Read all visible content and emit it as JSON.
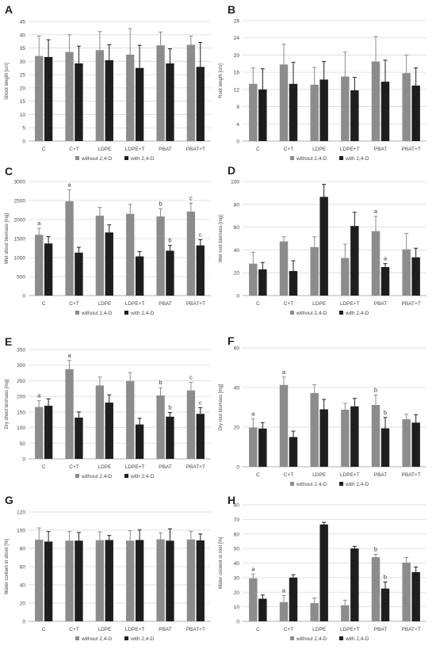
{
  "colors": {
    "without": "#8c8c8c",
    "with": "#1e1e1e",
    "grid": "#d9d9d9",
    "axis": "#b3b3b3",
    "text": "#444444"
  },
  "chart_data": [
    {
      "panel": "A",
      "type": "bar",
      "ylabel": "Shoot length [cm]",
      "ylim": [
        0,
        45
      ],
      "yticks": [
        0,
        5,
        10,
        15,
        20,
        25,
        30,
        35,
        40,
        45
      ],
      "categories": [
        "C",
        "C+T",
        "LDPE",
        "LDPE+T",
        "PBAT",
        "PBAT+T"
      ],
      "series": [
        {
          "name": "without 2,4-D",
          "values": [
            32,
            33.5,
            34.2,
            32.5,
            36,
            36.2
          ],
          "errors": [
            7.5,
            6.5,
            7,
            9.8,
            5,
            3.3
          ],
          "letters": [
            "",
            "",
            "",
            "",
            "",
            ""
          ]
        },
        {
          "name": "with 2,4-D",
          "values": [
            31.6,
            29.2,
            30.4,
            27.5,
            29.2,
            27.9
          ],
          "errors": [
            6.5,
            6.5,
            5.8,
            8.5,
            5.5,
            9.2
          ],
          "letters": [
            "",
            "",
            "",
            "",
            "",
            ""
          ]
        }
      ],
      "legend": "bottom",
      "grid": true
    },
    {
      "panel": "B",
      "type": "bar",
      "ylabel": "Root length [cm]",
      "ylim": [
        0,
        28
      ],
      "yticks": [
        0,
        4,
        8,
        12,
        16,
        20,
        24,
        28
      ],
      "categories": [
        "C",
        "C+T",
        "LDPE",
        "LDPE+T",
        "PBAT",
        "PBAT+T"
      ],
      "series": [
        {
          "name": "without 2,4-D",
          "values": [
            13.3,
            17.8,
            13.1,
            15,
            18.5,
            15.8
          ],
          "errors": [
            3.7,
            4.7,
            4,
            5.7,
            5.8,
            4.2
          ],
          "letters": [
            "",
            "",
            "",
            "",
            "",
            ""
          ]
        },
        {
          "name": "with 2,4-D",
          "values": [
            12,
            13.3,
            14.3,
            11.8,
            13.8,
            12.9
          ],
          "errors": [
            4.8,
            5,
            4.2,
            3,
            5,
            4.1
          ],
          "letters": [
            "",
            "",
            "",
            "",
            "",
            ""
          ]
        }
      ],
      "legend": "bottom",
      "grid": true
    },
    {
      "panel": "C",
      "type": "bar",
      "ylabel": "Wet shoot biomass [mg]",
      "ylim": [
        0,
        3000
      ],
      "yticks": [
        0,
        500,
        1000,
        1500,
        2000,
        2500,
        3000
      ],
      "categories": [
        "C",
        "C+T",
        "LDPE",
        "LDPE+T",
        "PBAT",
        "PBAT+T"
      ],
      "series": [
        {
          "name": "without 2,4-D",
          "values": [
            1600,
            2480,
            2100,
            2150,
            2080,
            2210
          ],
          "errors": [
            170,
            300,
            220,
            250,
            200,
            220
          ],
          "letters": [
            "a",
            "a",
            "",
            "",
            "b",
            "c"
          ]
        },
        {
          "name": "with 2,4-D",
          "values": [
            1370,
            1130,
            1660,
            1030,
            1180,
            1320
          ],
          "errors": [
            180,
            140,
            200,
            130,
            140,
            150
          ],
          "letters": [
            "",
            "",
            "",
            "",
            "b",
            "c"
          ]
        }
      ],
      "legend": "bottom",
      "grid": true
    },
    {
      "panel": "D",
      "type": "bar",
      "ylabel": "Wet root biomass [mg]",
      "ylim": [
        0,
        100
      ],
      "yticks": [
        0,
        20,
        40,
        60,
        80,
        100
      ],
      "categories": [
        "C",
        "C+T",
        "LDPE",
        "LDPE+T",
        "PBAT",
        "PBAT+T"
      ],
      "series": [
        {
          "name": "without 2,4-D",
          "values": [
            28,
            47.5,
            42.5,
            33,
            56.5,
            40.5
          ],
          "errors": [
            10,
            4,
            9,
            12,
            13,
            14
          ],
          "letters": [
            "",
            "",
            "",
            "",
            "a",
            ""
          ]
        },
        {
          "name": "with 2,4-D",
          "values": [
            23,
            21.5,
            86.5,
            61,
            25,
            33.5
          ],
          "errors": [
            6,
            9,
            11,
            12,
            3,
            8
          ],
          "letters": [
            "",
            "",
            "",
            "",
            "a",
            ""
          ]
        }
      ],
      "legend": "bottom",
      "grid": true
    },
    {
      "panel": "E",
      "type": "bar",
      "ylabel": "Dry shoot biomass [mg]",
      "ylim": [
        0,
        350
      ],
      "yticks": [
        0,
        50,
        100,
        150,
        200,
        250,
        300,
        350
      ],
      "categories": [
        "C",
        "C+T",
        "LDPE",
        "LDPE+T",
        "PBAT",
        "PBAT+T"
      ],
      "series": [
        {
          "name": "without 2,4-D",
          "values": [
            166,
            287,
            235,
            249,
            203,
            219
          ],
          "errors": [
            20,
            28,
            27,
            27,
            25,
            26
          ],
          "letters": [
            "a",
            "a",
            "",
            "",
            "b",
            "c"
          ]
        },
        {
          "name": "with 2,4-D",
          "values": [
            170,
            132,
            180,
            110,
            135,
            144
          ],
          "errors": [
            22,
            18,
            25,
            20,
            13,
            20
          ],
          "letters": [
            "",
            "",
            "",
            "",
            "b",
            "c"
          ]
        }
      ],
      "legend": "bottom",
      "grid": true
    },
    {
      "panel": "F",
      "type": "bar",
      "ylabel": "Dry root biomass [mg]",
      "ylim": [
        0,
        60
      ],
      "yticks": [
        0,
        20,
        40,
        60
      ],
      "categories": [
        "C",
        "C+T",
        "LDPE",
        "LDPE+T",
        "PBAT",
        "PBAT+T"
      ],
      "series": [
        {
          "name": "without 2,4-D",
          "values": [
            19.8,
            41.3,
            37.2,
            28.8,
            31.2,
            24
          ],
          "errors": [
            4.5,
            4,
            4.2,
            3.2,
            5,
            2.5
          ],
          "letters": [
            "a",
            "a",
            "",
            "",
            "b",
            ""
          ]
        },
        {
          "name": "with 2,4-D",
          "values": [
            19.3,
            15,
            29,
            30.5,
            19.4,
            22.3
          ],
          "errors": [
            3,
            3,
            5,
            4,
            5.5,
            4
          ],
          "letters": [
            "",
            "",
            "",
            "",
            "b",
            ""
          ]
        }
      ],
      "legend": "bottom",
      "grid": true
    },
    {
      "panel": "G",
      "type": "bar",
      "ylabel": "Water content in shoot [%]",
      "ylim": [
        0,
        120
      ],
      "yticks": [
        0,
        20,
        40,
        60,
        80,
        100,
        120
      ],
      "categories": [
        "C",
        "C+T",
        "LDPE",
        "LDPE+T",
        "PBAT",
        "PBAT+T"
      ],
      "series": [
        {
          "name": "without 2,4-D",
          "values": [
            89.5,
            88.5,
            89,
            88.5,
            90,
            89.8
          ],
          "errors": [
            13,
            10,
            9,
            11,
            7,
            9
          ],
          "letters": [
            "",
            "",
            "",
            "",
            "",
            ""
          ]
        },
        {
          "name": "with 2,4-D",
          "values": [
            87.5,
            88.5,
            89.2,
            89.2,
            88.5,
            88.8
          ],
          "errors": [
            11,
            9,
            5,
            11,
            13,
            7
          ],
          "letters": [
            "",
            "",
            "",
            "",
            "",
            ""
          ]
        }
      ],
      "legend": "bottom",
      "grid": true
    },
    {
      "panel": "H",
      "type": "bar",
      "ylabel": "Water content in root [%]",
      "ylim": [
        0,
        80
      ],
      "yticks": [
        0,
        10,
        20,
        30,
        40,
        50,
        60,
        70,
        80
      ],
      "categories": [
        "C",
        "C+T",
        "LDPE",
        "LDPE+T",
        "PBAT",
        "PBAT+T"
      ],
      "series": [
        {
          "name": "without 2,4-D",
          "values": [
            29.5,
            13.2,
            12.5,
            11,
            44,
            40.3
          ],
          "errors": [
            3,
            4.5,
            3.5,
            3.5,
            2,
            3.5
          ],
          "letters": [
            "a",
            "a",
            "",
            "",
            "b",
            ""
          ]
        },
        {
          "name": "with 2,4-D",
          "values": [
            15.5,
            30,
            66.5,
            50,
            22.5,
            33.8
          ],
          "errors": [
            2.5,
            2,
            1.5,
            1.5,
            4.5,
            3.5
          ],
          "letters": [
            "",
            "",
            "",
            "",
            "b",
            ""
          ]
        }
      ],
      "legend": "bottom",
      "grid": true
    }
  ]
}
